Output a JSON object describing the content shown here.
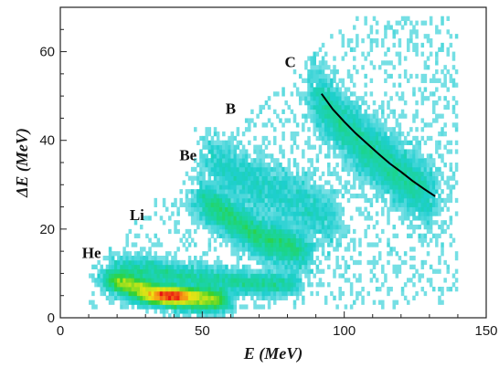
{
  "chart_data": {
    "type": "heatmap",
    "title": "",
    "xlabel": "E (MeV)",
    "ylabel": "ΔE (MeV)",
    "xlim": [
      0,
      150
    ],
    "ylim": [
      0,
      70
    ],
    "x_ticks": [
      0,
      50,
      100,
      150
    ],
    "y_ticks": [
      0,
      20,
      40,
      60
    ],
    "x_tick_labels": [
      "0",
      "50",
      "100",
      "150"
    ],
    "y_tick_labels": [
      "0",
      "20",
      "40",
      "60"
    ],
    "grid": false,
    "colormap": [
      "#ffffff",
      "#9fe6ee",
      "#1ecfcf",
      "#1bd58a",
      "#34d12e",
      "#b8e31b",
      "#f3e213",
      "#f58a14",
      "#e81212"
    ],
    "isotope_labels": [
      {
        "text": "He",
        "x": 11,
        "y": 13.5
      },
      {
        "text": "Li",
        "x": 27,
        "y": 22
      },
      {
        "text": "Be",
        "x": 45,
        "y": 35.5
      },
      {
        "text": "B",
        "x": 60,
        "y": 46
      },
      {
        "text": "C",
        "x": 81,
        "y": 56.5
      }
    ],
    "bands": [
      {
        "name": "He",
        "points": [
          [
            18,
            8.5
          ],
          [
            25,
            7.5
          ],
          [
            32,
            6.0
          ],
          [
            38,
            5.0
          ],
          [
            45,
            4.6
          ],
          [
            52,
            4.2
          ],
          [
            57,
            4.0
          ]
        ],
        "width": 1.3,
        "peak": 1.0
      },
      {
        "name": "Li",
        "points": [
          [
            20,
            11.5
          ],
          [
            30,
            11.0
          ],
          [
            40,
            9.8
          ],
          [
            50,
            9.0
          ],
          [
            60,
            8.2
          ],
          [
            70,
            7.8
          ],
          [
            82,
            7.8
          ]
        ],
        "width": 1.3,
        "peak": 0.28
      },
      {
        "name": "Be",
        "points": [
          [
            50,
            26.5
          ],
          [
            55,
            24.5
          ],
          [
            60,
            22.5
          ],
          [
            65,
            20.5
          ],
          [
            70,
            18.5
          ],
          [
            75,
            17.0
          ],
          [
            80,
            16.0
          ],
          [
            86,
            15.0
          ]
        ],
        "width": 2.3,
        "peak": 0.48
      },
      {
        "name": "B",
        "points": [
          [
            52,
            36
          ],
          [
            60,
            33
          ],
          [
            70,
            30
          ],
          [
            80,
            27
          ],
          [
            90,
            24
          ],
          [
            97,
            22
          ]
        ],
        "width": 3.2,
        "peak": 0.18
      },
      {
        "name": "C",
        "points": [
          [
            90,
            50
          ],
          [
            95,
            46.5
          ],
          [
            100,
            43
          ],
          [
            105,
            40
          ],
          [
            110,
            37
          ],
          [
            115,
            34.5
          ],
          [
            120,
            32
          ],
          [
            125,
            30
          ],
          [
            130,
            27.5
          ]
        ],
        "width": 3.5,
        "peak": 0.55
      }
    ],
    "fit_curve": {
      "color": "#000000",
      "points": [
        [
          92,
          50.5
        ],
        [
          96,
          47.0
        ],
        [
          100,
          44.2
        ],
        [
          104,
          41.6
        ],
        [
          108,
          39.3
        ],
        [
          112,
          37.0
        ],
        [
          116,
          34.8
        ],
        [
          120,
          32.9
        ],
        [
          124,
          30.9
        ],
        [
          128,
          29.1
        ],
        [
          132,
          27.4
        ]
      ]
    }
  }
}
